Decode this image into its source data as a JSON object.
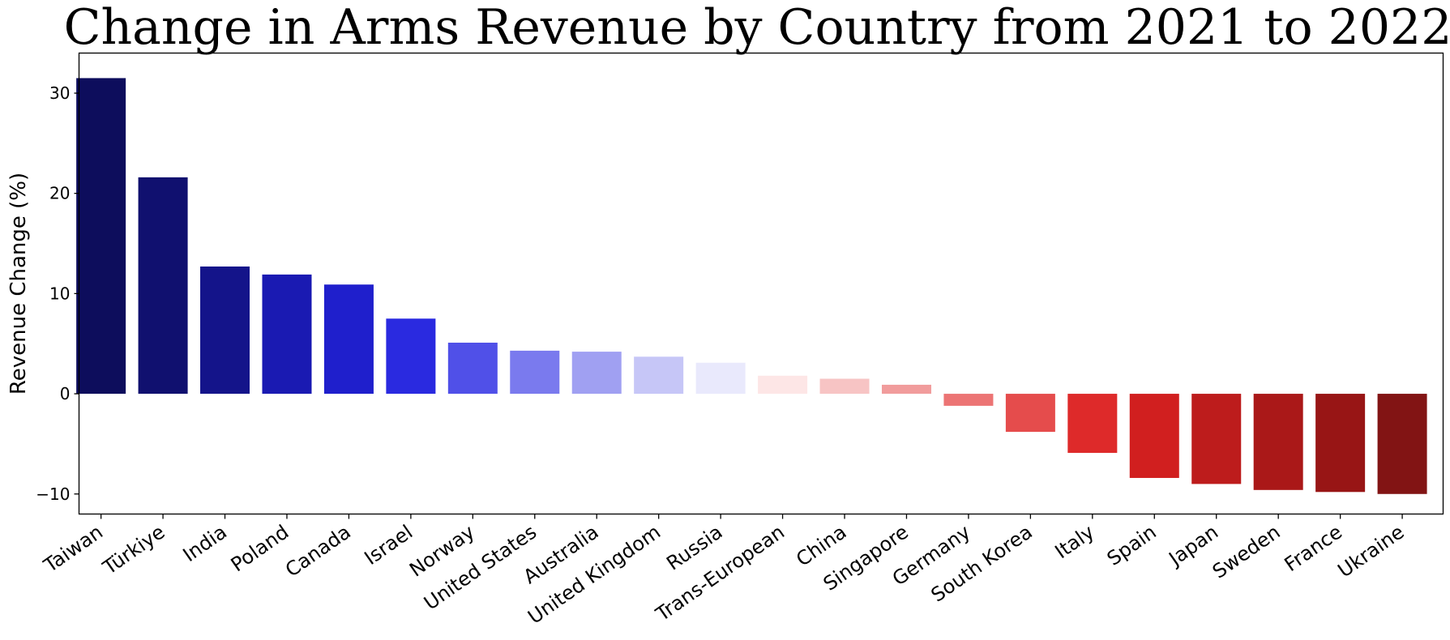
{
  "chart_data": {
    "type": "bar",
    "title": "Change in Arms Revenue by Country from 2021 to 2022",
    "xlabel": "",
    "ylabel": "Revenue Change (%)",
    "ylim": [
      -12,
      34
    ],
    "yticks": [
      30,
      20,
      10,
      0,
      -10
    ],
    "ytick_labels": [
      "30",
      "20",
      "10",
      "0",
      "−10"
    ],
    "grid": false,
    "legend": "none",
    "categories": [
      "Taiwan",
      "Türkiye",
      "India",
      "Poland",
      "Canada",
      "Israel",
      "Norway",
      "United States",
      "Australia",
      "United Kingdom",
      "Russia",
      "Trans-European",
      "China",
      "Singapore",
      "Germany",
      "South Korea",
      "Italy",
      "Spain",
      "Japan",
      "Sweden",
      "France",
      "Ukraine"
    ],
    "values": [
      31.5,
      21.6,
      12.7,
      11.9,
      10.9,
      7.5,
      5.1,
      4.3,
      4.2,
      3.7,
      3.1,
      1.8,
      1.5,
      0.9,
      -1.2,
      -3.8,
      -5.9,
      -8.4,
      -9.0,
      -9.6,
      -9.8,
      -10.0
    ],
    "colors": [
      "#0d0d5c",
      "#10106f",
      "#14148a",
      "#1a1ab2",
      "#1f1fcc",
      "#2a2ae0",
      "#5050e8",
      "#7a7aee",
      "#a0a0f2",
      "#c6c6f7",
      "#e9e9fc",
      "#fde6e6",
      "#f7c4c4",
      "#f19c9c",
      "#ec7474",
      "#e54c4c",
      "#de2a2a",
      "#d11f1f",
      "#bd1c1c",
      "#aa1818",
      "#981515",
      "#821414"
    ]
  }
}
